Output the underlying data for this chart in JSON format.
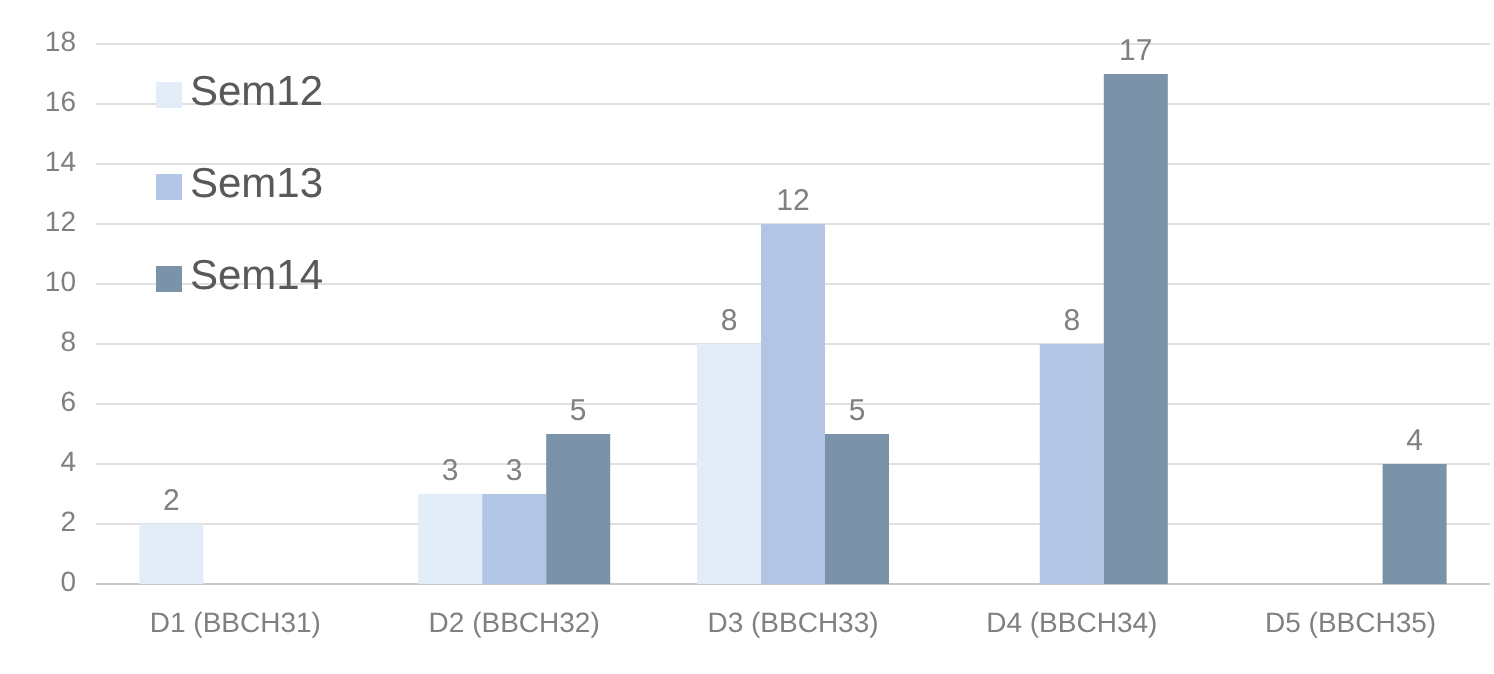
{
  "chart_data": {
    "type": "bar",
    "categories": [
      "D1 (BBCH31)",
      "D2 (BBCH32)",
      "D3 (BBCH33)",
      "D4 (BBCH34)",
      "D5 (BBCH35)"
    ],
    "series": [
      {
        "name": "Sem12",
        "color": "#e3edf8",
        "values": [
          2,
          3,
          8,
          null,
          null
        ]
      },
      {
        "name": "Sem13",
        "color": "#b3c5e5",
        "values": [
          null,
          3,
          12,
          8,
          null
        ]
      },
      {
        "name": "Sem14",
        "color": "#7a93a8",
        "values": [
          null,
          5,
          5,
          17,
          4
        ]
      }
    ],
    "ylim": [
      0,
      18
    ],
    "yticks": [
      0,
      2,
      4,
      6,
      8,
      10,
      12,
      14,
      16,
      18
    ],
    "grid": "y",
    "legend": "top left",
    "data_labels": true
  }
}
